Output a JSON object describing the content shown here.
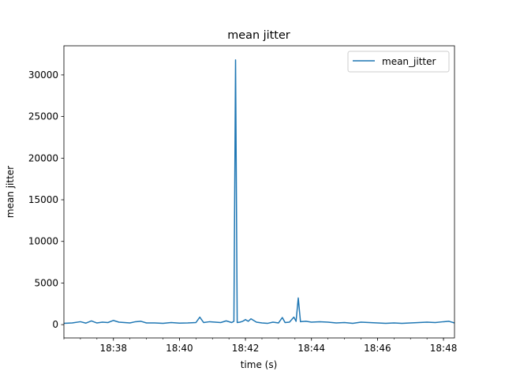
{
  "chart_data": {
    "type": "line",
    "title": "mean jitter",
    "xlabel": "time (s)",
    "ylabel": "mean jitter",
    "x_tick_labels": [
      "18:38",
      "18:40",
      "18:42",
      "18:44",
      "18:46",
      "18:48"
    ],
    "x_ticks": [
      "18:38",
      "18:40",
      "18:42",
      "18:44",
      "18:46",
      "18:48"
    ],
    "y_ticks": [
      0,
      5000,
      10000,
      15000,
      20000,
      25000,
      30000
    ],
    "y_tick_labels": [
      "0",
      "5000",
      "10000",
      "15000",
      "20000",
      "25000",
      "30000"
    ],
    "xlim": [
      "18:36:30",
      "18:48:20"
    ],
    "ylim": [
      -1600,
      33500
    ],
    "grid": false,
    "legend_position": "top-right",
    "series": [
      {
        "name": "mean_jitter",
        "color": "#1f77b4",
        "x": [
          "18:36:30",
          "18:36:45",
          "18:37:00",
          "18:37:10",
          "18:37:20",
          "18:37:30",
          "18:37:40",
          "18:37:50",
          "18:38:00",
          "18:38:10",
          "18:38:20",
          "18:38:30",
          "18:38:40",
          "18:38:50",
          "18:39:00",
          "18:39:15",
          "18:39:30",
          "18:39:45",
          "18:40:00",
          "18:40:15",
          "18:40:30",
          "18:40:37",
          "18:40:44",
          "18:40:55",
          "18:41:05",
          "18:41:15",
          "18:41:25",
          "18:41:35",
          "18:41:39",
          "18:41:42",
          "18:41:45",
          "18:41:50",
          "18:41:55",
          "18:42:00",
          "18:42:05",
          "18:42:10",
          "18:42:20",
          "18:42:30",
          "18:42:40",
          "18:42:50",
          "18:43:00",
          "18:43:07",
          "18:43:12",
          "18:43:20",
          "18:43:28",
          "18:43:32",
          "18:43:36",
          "18:43:40",
          "18:43:50",
          "18:44:00",
          "18:44:15",
          "18:44:30",
          "18:44:45",
          "18:45:00",
          "18:45:15",
          "18:45:30",
          "18:45:45",
          "18:46:00",
          "18:46:15",
          "18:46:30",
          "18:46:45",
          "18:47:00",
          "18:47:15",
          "18:47:30",
          "18:47:45",
          "18:48:00",
          "18:48:10",
          "18:48:20"
        ],
        "values": [
          150,
          200,
          350,
          180,
          450,
          200,
          300,
          250,
          500,
          300,
          250,
          200,
          350,
          400,
          200,
          200,
          150,
          250,
          180,
          200,
          250,
          900,
          250,
          350,
          300,
          250,
          450,
          250,
          400,
          31800,
          250,
          300,
          400,
          600,
          400,
          700,
          300,
          200,
          150,
          300,
          200,
          850,
          250,
          300,
          900,
          400,
          3200,
          350,
          400,
          300,
          350,
          300,
          200,
          250,
          150,
          300,
          250,
          200,
          150,
          200,
          150,
          200,
          250,
          300,
          250,
          350,
          400,
          200
        ]
      }
    ]
  }
}
